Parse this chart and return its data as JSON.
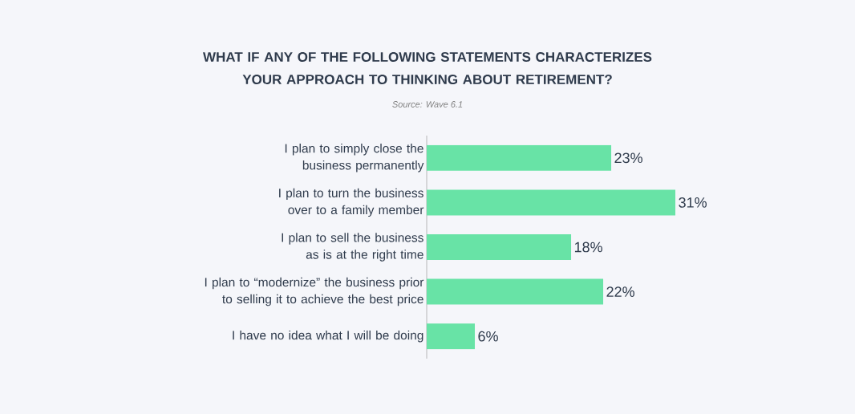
{
  "chart_data": {
    "type": "bar",
    "orientation": "horizontal",
    "title": "WHAT IF ANY OF THE FOLLOWING STATEMENTS CHARACTERIZES YOUR APPROACH TO THINKING ABOUT RETIREMENT?",
    "annotations": [
      "Source: Wave 6.1"
    ],
    "categories": [
      "I plan to simply close the business permanently",
      "I plan to turn the business over to a family member",
      "I plan to sell the business as is at the right time",
      "I plan to “modernize” the business prior to selling it to achieve the best price",
      "I have no idea what I will be doing"
    ],
    "values": [
      23,
      31,
      18,
      22,
      6
    ],
    "value_labels": [
      "23%",
      "31%",
      "18%",
      "22%",
      "6%"
    ],
    "color": "#68e3a6"
  }
}
